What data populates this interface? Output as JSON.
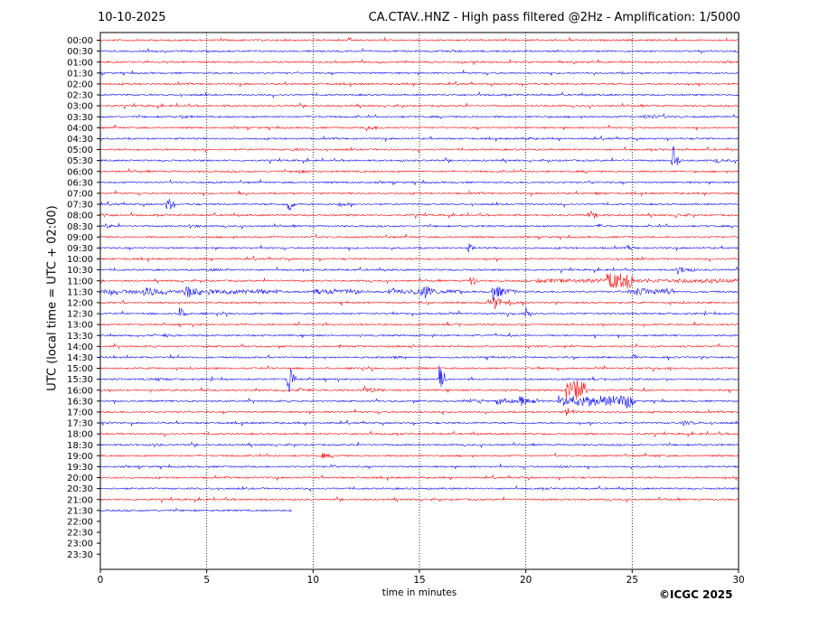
{
  "header": {
    "date": "10-10-2025",
    "title": "CA.CTAV..HNZ - High pass filtered @2Hz - Amplification: 1/5000"
  },
  "footer": {
    "copyright": "©ICGC 2025"
  },
  "chart_data": {
    "type": "line",
    "title": "CA.CTAV..HNZ - High pass filtered @2Hz - Amplification: 1/5000",
    "xlabel": "time in minutes",
    "ylabel": "UTC (local time = UTC + 02:00)",
    "xlim": [
      0,
      30
    ],
    "x_ticks": [
      0,
      5,
      10,
      15,
      20,
      25,
      30
    ],
    "y_ticks": [
      "00:00",
      "00:30",
      "01:00",
      "01:30",
      "02:00",
      "02:30",
      "03:00",
      "03:30",
      "04:00",
      "04:30",
      "05:00",
      "05:30",
      "06:00",
      "06:30",
      "07:00",
      "07:30",
      "08:00",
      "08:30",
      "09:00",
      "09:30",
      "10:00",
      "10:30",
      "11:00",
      "11:30",
      "12:00",
      "12:30",
      "13:00",
      "13:30",
      "14:00",
      "14:30",
      "15:00",
      "15:30",
      "16:00",
      "16:30",
      "17:00",
      "17:30",
      "18:00",
      "18:30",
      "19:00",
      "19:30",
      "20:00",
      "20:30",
      "21:00",
      "21:30",
      "22:00",
      "22:30",
      "23:00",
      "23:30"
    ],
    "grid": {
      "x": true,
      "y": false
    },
    "trace_colors": [
      "#ff0000",
      "#0000ff"
    ],
    "trace_end_minute": 9.0,
    "events": [
      {
        "row": 1,
        "minute": 16.5,
        "amp": 0.2,
        "dur": 0.3
      },
      {
        "row": 7,
        "minute": 3.8,
        "amp": 0.25,
        "dur": 0.4
      },
      {
        "row": 7,
        "minute": 25.5,
        "amp": 0.4,
        "dur": 0.8
      },
      {
        "row": 8,
        "minute": 12.5,
        "amp": 0.5,
        "dur": 0.5
      },
      {
        "row": 9,
        "minute": 19.8,
        "amp": 0.2,
        "dur": 0.4
      },
      {
        "row": 10,
        "minute": 9.0,
        "amp": 0.2,
        "dur": 0.4
      },
      {
        "row": 11,
        "minute": 26.9,
        "amp": 3.2,
        "dur": 0.2
      },
      {
        "row": 11,
        "minute": 28.9,
        "amp": 0.35,
        "dur": 0.4
      },
      {
        "row": 12,
        "minute": 9.2,
        "amp": 0.3,
        "dur": 0.5
      },
      {
        "row": 13,
        "minute": 23.0,
        "amp": 0.2,
        "dur": 0.3
      },
      {
        "row": 14,
        "minute": 6.5,
        "amp": 0.45,
        "dur": 0.2
      },
      {
        "row": 14,
        "minute": 23.3,
        "amp": 0.2,
        "dur": 0.3
      },
      {
        "row": 15,
        "minute": 3.1,
        "amp": 2.4,
        "dur": 0.2
      },
      {
        "row": 15,
        "minute": 8.8,
        "amp": 2.2,
        "dur": 0.2
      },
      {
        "row": 15,
        "minute": 11.2,
        "amp": 0.25,
        "dur": 0.5
      },
      {
        "row": 16,
        "minute": 0.1,
        "amp": 0.35,
        "dur": 0.3
      },
      {
        "row": 16,
        "minute": 22.9,
        "amp": 0.4,
        "dur": 0.6
      },
      {
        "row": 16,
        "minute": 27.0,
        "amp": 0.3,
        "dur": 0.4
      },
      {
        "row": 17,
        "minute": 0.2,
        "amp": 0.4,
        "dur": 0.3
      },
      {
        "row": 17,
        "minute": 4.2,
        "amp": 0.3,
        "dur": 0.4
      },
      {
        "row": 17,
        "minute": 23.4,
        "amp": 0.3,
        "dur": 0.3
      },
      {
        "row": 19,
        "minute": 17.3,
        "amp": 0.9,
        "dur": 0.2
      },
      {
        "row": 19,
        "minute": 24.8,
        "amp": 0.45,
        "dur": 0.2
      },
      {
        "row": 21,
        "minute": 5.0,
        "amp": 0.2,
        "dur": 0.6
      },
      {
        "row": 21,
        "minute": 27.1,
        "amp": 0.8,
        "dur": 0.5
      },
      {
        "row": 22,
        "minute": 17.4,
        "amp": 1.8,
        "dur": 0.2
      },
      {
        "row": 22,
        "minute": 20.5,
        "amp": 0.3,
        "dur": 9.5
      },
      {
        "row": 22,
        "minute": 23.8,
        "amp": 1.4,
        "dur": 1.2
      },
      {
        "row": 23,
        "minute": 0.0,
        "amp": 0.35,
        "dur": 8.5
      },
      {
        "row": 23,
        "minute": 2.0,
        "amp": 0.6,
        "dur": 0.6
      },
      {
        "row": 23,
        "minute": 4.0,
        "amp": 0.9,
        "dur": 0.4
      },
      {
        "row": 23,
        "minute": 10.0,
        "amp": 0.4,
        "dur": 2.3
      },
      {
        "row": 23,
        "minute": 13.5,
        "amp": 0.4,
        "dur": 2.0
      },
      {
        "row": 23,
        "minute": 15.2,
        "amp": 1.2,
        "dur": 0.4
      },
      {
        "row": 23,
        "minute": 16.0,
        "amp": 0.3,
        "dur": 1.0
      },
      {
        "row": 23,
        "minute": 18.4,
        "amp": 1.6,
        "dur": 0.6
      },
      {
        "row": 23,
        "minute": 24.8,
        "amp": 0.6,
        "dur": 2.2
      },
      {
        "row": 24,
        "minute": 18.5,
        "amp": 1.7,
        "dur": 0.3
      },
      {
        "row": 24,
        "minute": 19.2,
        "amp": 0.7,
        "dur": 0.2
      },
      {
        "row": 25,
        "minute": 3.7,
        "amp": 1.6,
        "dur": 0.2
      },
      {
        "row": 25,
        "minute": 20.0,
        "amp": 1.1,
        "dur": 0.2
      },
      {
        "row": 27,
        "minute": 3.0,
        "amp": 0.25,
        "dur": 0.4
      },
      {
        "row": 28,
        "minute": 11.2,
        "amp": 0.2,
        "dur": 0.3
      },
      {
        "row": 29,
        "minute": 13.8,
        "amp": 0.2,
        "dur": 0.3
      },
      {
        "row": 31,
        "minute": 2.6,
        "amp": 0.3,
        "dur": 0.4
      },
      {
        "row": 31,
        "minute": 15.9,
        "amp": 3.3,
        "dur": 0.2
      },
      {
        "row": 31,
        "minute": 8.8,
        "amp": 4.4,
        "dur": 0.2
      },
      {
        "row": 32,
        "minute": 12.4,
        "amp": 0.7,
        "dur": 0.5
      },
      {
        "row": 32,
        "minute": 21.9,
        "amp": 2.2,
        "dur": 1.0
      },
      {
        "row": 32,
        "minute": 9.3,
        "amp": 0.3,
        "dur": 0.4
      },
      {
        "row": 33,
        "minute": 17.0,
        "amp": 0.3,
        "dur": 1.0
      },
      {
        "row": 33,
        "minute": 18.6,
        "amp": 0.8,
        "dur": 0.6
      },
      {
        "row": 33,
        "minute": 19.7,
        "amp": 0.9,
        "dur": 0.6
      },
      {
        "row": 33,
        "minute": 21.5,
        "amp": 1.0,
        "dur": 3.5
      },
      {
        "row": 33,
        "minute": 24.8,
        "amp": 1.6,
        "dur": 0.2
      },
      {
        "row": 34,
        "minute": 21.9,
        "amp": 1.0,
        "dur": 0.3
      },
      {
        "row": 35,
        "minute": 0.1,
        "amp": 0.3,
        "dur": 0.3
      },
      {
        "row": 35,
        "minute": 27.4,
        "amp": 0.35,
        "dur": 0.5
      },
      {
        "row": 37,
        "minute": 2.5,
        "amp": 0.3,
        "dur": 0.3
      },
      {
        "row": 38,
        "minute": 10.4,
        "amp": 0.5,
        "dur": 0.3
      },
      {
        "row": 38,
        "minute": 26.1,
        "amp": 0.2,
        "dur": 0.3
      },
      {
        "row": 39,
        "minute": 10.8,
        "amp": 0.3,
        "dur": 0.3
      },
      {
        "row": 39,
        "minute": 21.5,
        "amp": 0.2,
        "dur": 0.4
      }
    ]
  }
}
